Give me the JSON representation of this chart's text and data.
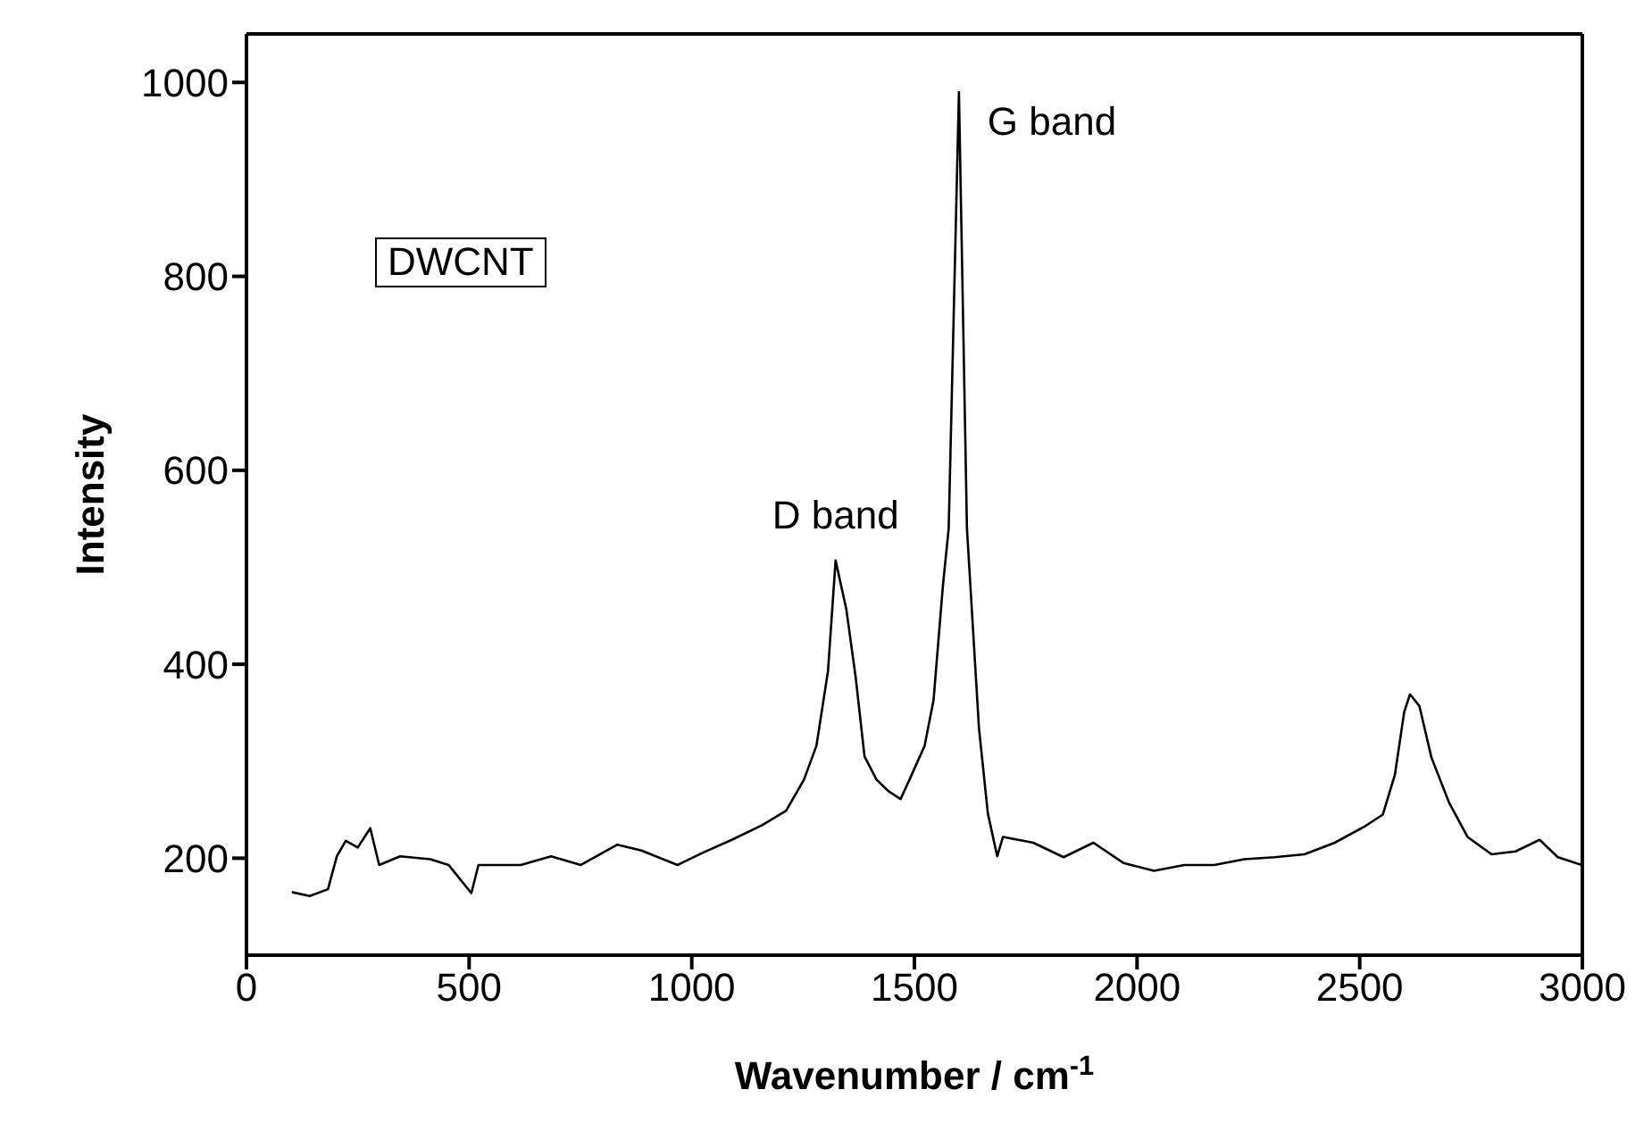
{
  "chart_data": {
    "type": "line",
    "xlabel": "Wavenumber / cm$^{-1}$",
    "ylabel": "Intensity",
    "xlim": [
      0,
      3000
    ],
    "xticks": [
      0,
      500,
      1000,
      1500,
      2000,
      2500,
      3000
    ],
    "ylim": [
      100,
      1050
    ],
    "yticks": [
      200,
      400,
      600,
      800,
      1000
    ],
    "marker": "none",
    "line_style": "solid",
    "annotations": [
      "DWCNT",
      {
        "text": "D band",
        "x": 1323,
        "y": 507
      },
      {
        "text": "G band",
        "x": 1600,
        "y": 990
      }
    ],
    "x": [
      102,
      142,
      183,
      203,
      223,
      250,
      278,
      298,
      345,
      413,
      454,
      505,
      521,
      616,
      684,
      751,
      833,
      887,
      968,
      1022,
      1090,
      1158,
      1212,
      1252,
      1280,
      1306,
      1323,
      1347,
      1368,
      1388,
      1415,
      1442,
      1469,
      1489,
      1523,
      1543,
      1564,
      1577,
      1600,
      1618,
      1645,
      1665,
      1686,
      1699,
      1767,
      1835,
      1902,
      1970,
      2038,
      2106,
      2173,
      2241,
      2309,
      2376,
      2444,
      2512,
      2552,
      2579,
      2600,
      2613,
      2634,
      2661,
      2701,
      2742,
      2796,
      2850,
      2904,
      2945,
      2999
    ],
    "series": [
      {
        "color": "#000000",
        "values": [
          165,
          161,
          168,
          202,
          218,
          211,
          231,
          193,
          202,
          199,
          193,
          164,
          193,
          193,
          202,
          193,
          214,
          208,
          193,
          205,
          219,
          234,
          249,
          281,
          316,
          393,
          507,
          457,
          387,
          305,
          281,
          269,
          261,
          281,
          316,
          363,
          481,
          540,
          990,
          540,
          334,
          246,
          202,
          222,
          216,
          201,
          216,
          195,
          187,
          193,
          193,
          199,
          201,
          204,
          216,
          233,
          245,
          286,
          351,
          369,
          357,
          304,
          257,
          222,
          204,
          207,
          219,
          201,
          193
        ]
      }
    ]
  }
}
